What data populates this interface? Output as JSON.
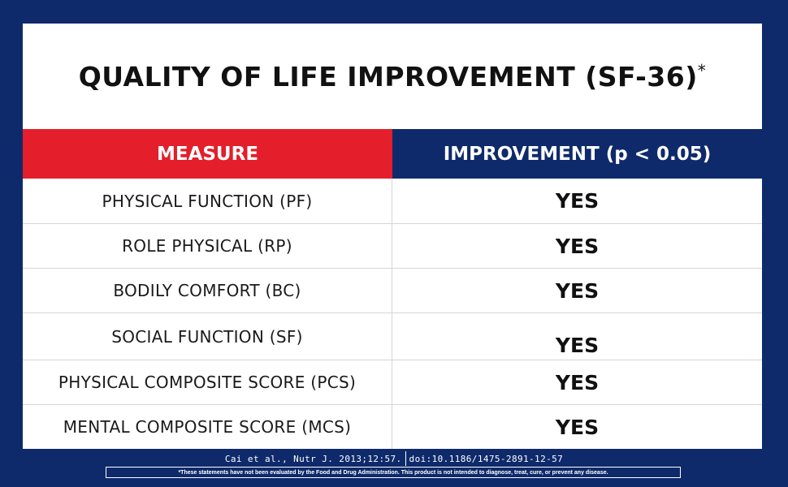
{
  "title": "QUALITY OF LIFE IMPROVEMENT (SF-36)",
  "title_asterisk": "*",
  "table": {
    "headers": {
      "measure": "MEASURE",
      "improvement": "IMPROVEMENT (p < 0.05)"
    },
    "rows": [
      {
        "measure": "PHYSICAL FUNCTION (PF)",
        "value": "YES"
      },
      {
        "measure": "ROLE PHYSICAL (RP)",
        "value": "YES"
      },
      {
        "measure": "BODILY COMFORT (BC)",
        "value": "YES"
      },
      {
        "measure": "SOCIAL FUNCTION (SF)",
        "value": "YES"
      },
      {
        "measure": "PHYSICAL COMPOSITE SCORE (PCS)",
        "value": "YES"
      },
      {
        "measure": "MENTAL COMPOSITE SCORE (MCS)",
        "value": "YES"
      }
    ]
  },
  "citation": {
    "source": "Cai et al., Nutr J. 2013;12:57.",
    "doi": "doi:10.1186/1475-2891-12-57"
  },
  "disclaimer": "*These statements have not been evaluated by the Food and Drug Administration.  This product is not intended to diagnose, treat, cure, or prevent any disease.",
  "colors": {
    "background_navy": "#0f2a6b",
    "header_red": "#e41e2a",
    "card_white": "#ffffff"
  }
}
